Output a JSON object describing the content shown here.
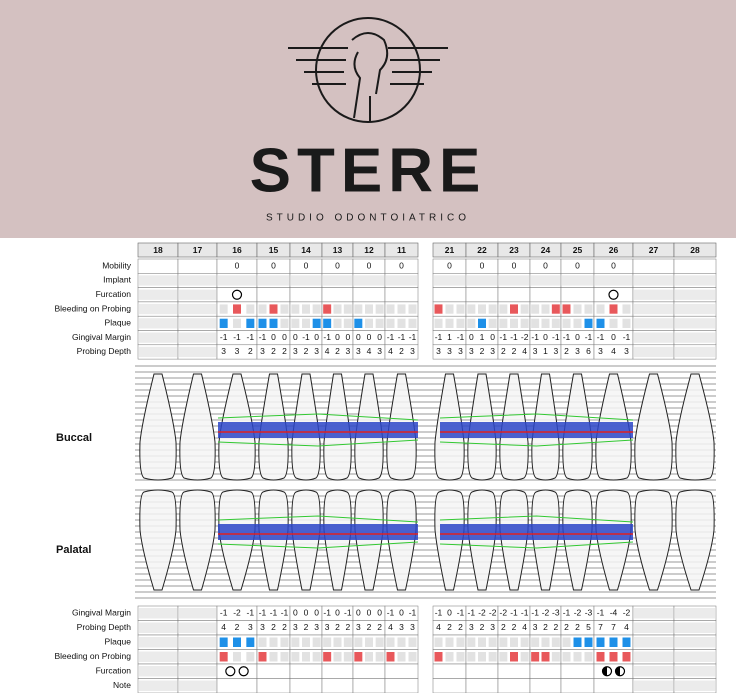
{
  "header": {
    "brand": "STERE",
    "subtitle": "STUDIO ODONTOIATRICO"
  },
  "upper_labels": [
    "Mobility",
    "Implant",
    "Furcation",
    "Bleeding on Probing",
    "Plaque",
    "Gingival Margin",
    "Probing Depth"
  ],
  "lower_labels": [
    "Gingival Margin",
    "Probing Depth",
    "Plaque",
    "Bleeding on Probing",
    "Furcation",
    "Note"
  ],
  "section_labels": {
    "buccal": "Buccal",
    "palatal": "Palatal"
  },
  "teeth": [
    {
      "number": "18"
    },
    {
      "number": "17"
    },
    {
      "number": "16",
      "mobility": 0,
      "furcation_b": [
        "open"
      ],
      "bop_b": [
        0,
        1,
        0
      ],
      "pl_b": [
        1,
        0,
        1
      ],
      "gm_b": [
        -1,
        -1,
        -1
      ],
      "pd_b": [
        3,
        3,
        2
      ],
      "gm_p": [
        -1,
        -2,
        -1
      ],
      "pd_p": [
        4,
        2,
        3
      ],
      "pl_p": [
        1,
        1,
        1
      ],
      "bop_p": [
        1,
        0,
        0
      ],
      "furcation_p": [
        "open",
        "open"
      ]
    },
    {
      "number": "15",
      "mobility": 0,
      "bop_b": [
        0,
        1,
        0
      ],
      "pl_b": [
        1,
        1,
        0
      ],
      "gm_b": [
        -1,
        0,
        0
      ],
      "pd_b": [
        3,
        2,
        2
      ],
      "gm_p": [
        -1,
        -1,
        -1
      ],
      "pd_p": [
        3,
        2,
        2
      ],
      "pl_p": [
        0,
        0,
        0
      ],
      "bop_p": [
        1,
        0,
        0
      ]
    },
    {
      "number": "14",
      "mobility": 0,
      "bop_b": [
        0,
        0,
        0
      ],
      "pl_b": [
        0,
        0,
        1
      ],
      "gm_b": [
        0,
        -1,
        0
      ],
      "pd_b": [
        3,
        2,
        3
      ],
      "gm_p": [
        0,
        0,
        0
      ],
      "pd_p": [
        3,
        2,
        3
      ],
      "pl_p": [
        0,
        0,
        0
      ],
      "bop_p": [
        0,
        0,
        0
      ]
    },
    {
      "number": "13",
      "mobility": 0,
      "bop_b": [
        1,
        0,
        0
      ],
      "pl_b": [
        1,
        0,
        0
      ],
      "gm_b": [
        -1,
        0,
        0
      ],
      "pd_b": [
        4,
        2,
        3
      ],
      "gm_p": [
        -1,
        0,
        -1
      ],
      "pd_p": [
        3,
        2,
        2
      ],
      "pl_p": [
        0,
        0,
        0
      ],
      "bop_p": [
        1,
        0,
        0
      ]
    },
    {
      "number": "12",
      "mobility": 0,
      "bop_b": [
        0,
        0,
        0
      ],
      "pl_b": [
        1,
        0,
        0
      ],
      "gm_b": [
        0,
        0,
        0
      ],
      "pd_b": [
        3,
        4,
        3
      ],
      "gm_p": [
        0,
        0,
        0
      ],
      "pd_p": [
        3,
        2,
        2
      ],
      "pl_p": [
        0,
        0,
        0
      ],
      "bop_p": [
        1,
        0,
        0
      ]
    },
    {
      "number": "11",
      "mobility": 0,
      "bop_b": [
        0,
        0,
        0
      ],
      "pl_b": [
        0,
        0,
        0
      ],
      "gm_b": [
        -1,
        -1,
        -1
      ],
      "pd_b": [
        4,
        2,
        3
      ],
      "gm_p": [
        -1,
        0,
        -1
      ],
      "pd_p": [
        4,
        3,
        3
      ],
      "pl_p": [
        0,
        0,
        0
      ],
      "bop_p": [
        1,
        0,
        0
      ]
    },
    {
      "number": "21",
      "mobility": 0,
      "bop_b": [
        1,
        0,
        0
      ],
      "pl_b": [
        0,
        0,
        0
      ],
      "gm_b": [
        -1,
        1,
        -1
      ],
      "pd_b": [
        3,
        3,
        3
      ],
      "gm_p": [
        -1,
        0,
        -1
      ],
      "pd_p": [
        4,
        2,
        2
      ],
      "pl_p": [
        0,
        0,
        0
      ],
      "bop_p": [
        1,
        0,
        0
      ]
    },
    {
      "number": "22",
      "mobility": 0,
      "bop_b": [
        0,
        0,
        0
      ],
      "pl_b": [
        0,
        1,
        0
      ],
      "gm_b": [
        0,
        1,
        0
      ],
      "pd_b": [
        3,
        2,
        3
      ],
      "gm_p": [
        -1,
        -2,
        -2
      ],
      "pd_p": [
        3,
        2,
        3
      ],
      "pl_p": [
        0,
        0,
        0
      ],
      "bop_p": [
        0,
        0,
        0
      ]
    },
    {
      "number": "23",
      "mobility": 0,
      "bop_b": [
        0,
        1,
        0
      ],
      "pl_b": [
        0,
        0,
        0
      ],
      "gm_b": [
        -1,
        -1,
        -2
      ],
      "pd_b": [
        2,
        2,
        4
      ],
      "gm_p": [
        -2,
        -1,
        -1
      ],
      "pd_p": [
        2,
        2,
        4
      ],
      "pl_p": [
        0,
        0,
        0
      ],
      "bop_p": [
        0,
        1,
        0
      ]
    },
    {
      "number": "24",
      "mobility": 0,
      "bop_b": [
        0,
        0,
        1
      ],
      "pl_b": [
        0,
        0,
        0
      ],
      "gm_b": [
        -1,
        0,
        -1
      ],
      "pd_b": [
        3,
        1,
        3
      ],
      "gm_p": [
        -1,
        -2,
        -3
      ],
      "pd_p": [
        3,
        2,
        2
      ],
      "pl_p": [
        0,
        0,
        0
      ],
      "bop_p": [
        1,
        1,
        0
      ]
    },
    {
      "number": "25",
      "mobility": 0,
      "bop_b": [
        1,
        0,
        0
      ],
      "pl_b": [
        0,
        0,
        1
      ],
      "gm_b": [
        -1,
        0,
        -1
      ],
      "pd_b": [
        2,
        3,
        6
      ],
      "gm_p": [
        -1,
        -2,
        -3
      ],
      "pd_p": [
        2,
        2,
        5
      ],
      "pl_p": [
        0,
        1,
        1
      ],
      "bop_p": [
        0,
        0,
        0
      ]
    },
    {
      "number": "26",
      "mobility": 0,
      "furcation_b": [
        "open"
      ],
      "bop_b": [
        0,
        1,
        0
      ],
      "pl_b": [
        1,
        0,
        0
      ],
      "gm_b": [
        -1,
        0,
        -1
      ],
      "pd_b": [
        3,
        4,
        3
      ],
      "gm_p": [
        -1,
        -4,
        -2
      ],
      "pd_p": [
        7,
        7,
        4
      ],
      "pl_p": [
        1,
        1,
        1
      ],
      "bop_p": [
        1,
        1,
        1
      ],
      "furcation_p": [
        "half",
        "half"
      ]
    },
    {
      "number": "27"
    },
    {
      "number": "28"
    }
  ]
}
